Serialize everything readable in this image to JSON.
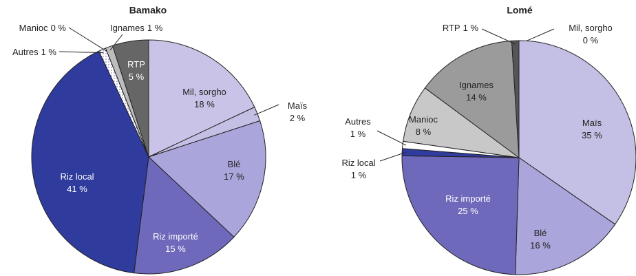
{
  "chart_data": [
    {
      "type": "pie",
      "title": "Bamako",
      "categories": [
        "Mil, sorgho",
        "Maïs",
        "Blé",
        "Riz importé",
        "Riz local",
        "Autres",
        "Manioc",
        "Ignames",
        "RTP"
      ],
      "values": [
        18,
        2,
        17,
        15,
        41,
        1,
        0,
        1,
        5
      ],
      "value_labels": [
        "18 %",
        "2 %",
        "17 %",
        "15 %",
        "41 %",
        "1 %",
        "0 %",
        "1 %",
        "5 %"
      ],
      "colors": [
        "#c9c4e7",
        "#c4bfe4",
        "#aaa5da",
        "#6f69bb",
        "#2f3b9d",
        "#ffffff",
        "#ffffff",
        "#bdbdbd",
        "#666666"
      ]
    },
    {
      "type": "pie",
      "title": "Lomé",
      "categories": [
        "Mil, sorgho",
        "Maïs",
        "Blé",
        "Riz importé",
        "Riz local",
        "Autres",
        "Manioc",
        "Ignames",
        "RTP"
      ],
      "values": [
        0,
        35,
        16,
        25,
        1,
        1,
        8,
        14,
        1
      ],
      "value_labels": [
        "0 %",
        "35 %",
        "16 %",
        "25 %",
        "1 %",
        "1 %",
        "8 %",
        "14 %",
        "1 %"
      ],
      "colors": [
        "#c9c4e7",
        "#c4bfe4",
        "#aaa5da",
        "#6f69bb",
        "#2f3b9d",
        "#ffffff",
        "#c8c8c8",
        "#9b9b9b",
        "#555555"
      ]
    }
  ]
}
